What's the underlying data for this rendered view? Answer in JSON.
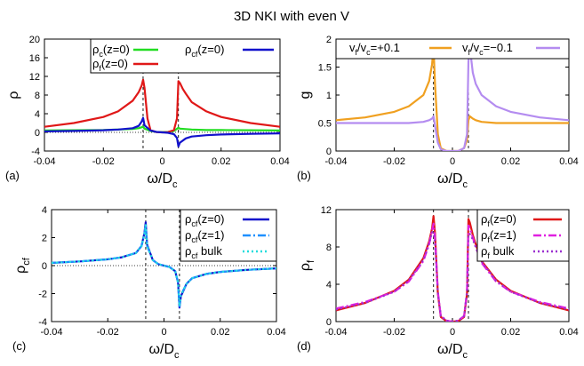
{
  "figure": {
    "title": "3D NKI with even V"
  },
  "chart_data": [
    {
      "panel_label": "(a)",
      "type": "line",
      "xlabel": "ω/D",
      "xlabel_sub": "c",
      "ylabel": "ρ",
      "xlim": [
        -0.04,
        0.04
      ],
      "ylim": [
        -4,
        20
      ],
      "xticks": [
        -0.04,
        -0.02,
        0,
        0.02,
        0.04
      ],
      "xtick_labels": [
        "-0.04",
        "-0.02",
        "0",
        "0.02",
        "0.04"
      ],
      "yticks": [
        -4,
        0,
        4,
        8,
        12,
        16,
        20
      ],
      "ytick_labels": [
        "-4",
        "0",
        "4",
        "8",
        "12",
        "16",
        "20"
      ],
      "vlines": [
        -0.0065,
        0.0055
      ],
      "zero_line": true,
      "legend_position": "top",
      "series": [
        {
          "name": "ρc(z=0)",
          "label_main": "ρ",
          "label_sub": "c",
          "label_rest": "(z=0)",
          "color": "#22dd22",
          "style": "solid",
          "x": [
            -0.04,
            -0.03,
            -0.02,
            -0.015,
            -0.01,
            -0.008,
            -0.0065,
            -0.006,
            -0.004,
            -0.002,
            0,
            0.002,
            0.004,
            0.0055,
            0.006,
            0.008,
            0.01,
            0.015,
            0.02,
            0.03,
            0.04
          ],
          "y": [
            0.4,
            0.45,
            0.5,
            0.6,
            0.75,
            0.9,
            1.2,
            0.8,
            0.3,
            0.1,
            0.05,
            0.1,
            0.3,
            1.0,
            0.8,
            0.7,
            0.6,
            0.5,
            0.5,
            0.45,
            0.4
          ]
        },
        {
          "name": "ρf(z=0)",
          "label_main": "ρ",
          "label_sub": "f",
          "label_rest": "(z=0)",
          "color": "#e01818",
          "style": "solid",
          "x": [
            -0.04,
            -0.03,
            -0.02,
            -0.015,
            -0.01,
            -0.008,
            -0.007,
            -0.0065,
            -0.006,
            -0.005,
            -0.004,
            -0.002,
            0,
            0.002,
            0.004,
            0.005,
            0.0055,
            0.006,
            0.007,
            0.008,
            0.01,
            0.015,
            0.02,
            0.03,
            0.04
          ],
          "y": [
            1.2,
            2.0,
            3.3,
            4.5,
            6.8,
            8.6,
            10.0,
            11.3,
            9.5,
            3.0,
            0.5,
            0.05,
            0.0,
            0.05,
            0.5,
            3.0,
            11.0,
            10.6,
            9.3,
            8.3,
            6.5,
            4.5,
            3.3,
            2.0,
            1.2
          ]
        },
        {
          "name": "ρcf(z=0)",
          "label_main": "ρ",
          "label_sub": "cf",
          "label_rest": "(z=0)",
          "color": "#1212cc",
          "style": "solid",
          "x": [
            -0.04,
            -0.03,
            -0.02,
            -0.015,
            -0.01,
            -0.008,
            -0.007,
            -0.0065,
            -0.006,
            -0.004,
            -0.002,
            0,
            0.002,
            0.004,
            0.005,
            0.0055,
            0.006,
            0.008,
            0.01,
            0.015,
            0.02,
            0.03,
            0.04
          ],
          "y": [
            0.2,
            0.3,
            0.45,
            0.6,
            0.9,
            1.4,
            2.3,
            3.1,
            1.5,
            0.4,
            0.1,
            0,
            -0.1,
            -0.4,
            -1.2,
            -3.0,
            -2.2,
            -1.3,
            -0.9,
            -0.6,
            -0.45,
            -0.3,
            -0.2
          ]
        }
      ]
    },
    {
      "panel_label": "(b)",
      "type": "line",
      "xlabel": "ω/D",
      "xlabel_sub": "c",
      "ylabel": "g",
      "xlim": [
        -0.04,
        0.04
      ],
      "ylim": [
        0,
        2
      ],
      "xticks": [
        -0.04,
        -0.02,
        0,
        0.02,
        0.04
      ],
      "xtick_labels": [
        "-0.04",
        "-0.02",
        "0",
        "0.02",
        "0.04"
      ],
      "yticks": [
        0,
        0.5,
        1,
        1.5,
        2
      ],
      "ytick_labels": [
        "0",
        "0.5",
        "1",
        "1.5",
        "2"
      ],
      "vlines": [
        -0.0065,
        0.0055
      ],
      "zero_line": false,
      "legend_position": "top",
      "series": [
        {
          "name": "vf/vc=+0.1",
          "label_html_parts": [
            "v",
            "f",
            "/v",
            "c",
            "=+0.1"
          ],
          "color": "#f0a020",
          "style": "solid",
          "x": [
            -0.04,
            -0.03,
            -0.02,
            -0.015,
            -0.01,
            -0.008,
            -0.007,
            -0.0065,
            -0.006,
            -0.005,
            -0.004,
            -0.002,
            0,
            0.002,
            0.004,
            0.005,
            0.0055,
            0.006,
            0.007,
            0.008,
            0.01,
            0.015,
            0.02,
            0.03,
            0.04
          ],
          "y": [
            0.55,
            0.6,
            0.7,
            0.8,
            1.0,
            1.25,
            1.55,
            1.88,
            1.2,
            0.3,
            0.05,
            0.0,
            0.0,
            0.0,
            0.05,
            0.2,
            0.55,
            0.62,
            0.58,
            0.55,
            0.52,
            0.5,
            0.5,
            0.5,
            0.5
          ]
        },
        {
          "name": "vf/vc=−0.1",
          "label_html_parts": [
            "v",
            "f",
            "/v",
            "c",
            "=−0.1"
          ],
          "color": "#b48cf0",
          "style": "solid",
          "x": [
            -0.04,
            -0.03,
            -0.02,
            -0.015,
            -0.01,
            -0.008,
            -0.007,
            -0.0065,
            -0.006,
            -0.005,
            -0.004,
            -0.002,
            0,
            0.002,
            0.004,
            0.005,
            0.0055,
            0.006,
            0.007,
            0.008,
            0.01,
            0.015,
            0.02,
            0.03,
            0.04
          ],
          "y": [
            0.5,
            0.5,
            0.5,
            0.5,
            0.52,
            0.55,
            0.58,
            0.62,
            0.45,
            0.15,
            0.03,
            0.0,
            0.0,
            0.0,
            0.05,
            0.3,
            1.6,
            1.85,
            1.4,
            1.2,
            1.0,
            0.8,
            0.7,
            0.6,
            0.55
          ]
        }
      ]
    },
    {
      "panel_label": "(c)",
      "type": "line",
      "xlabel": "ω/D",
      "xlabel_sub": "c",
      "ylabel": "ρ",
      "ylabel_sub": "cf",
      "xlim": [
        -0.04,
        0.04
      ],
      "ylim": [
        -4,
        4
      ],
      "xticks": [
        -0.04,
        -0.02,
        0,
        0.02,
        0.04
      ],
      "xtick_labels": [
        "-0.04",
        "-0.02",
        "0",
        "0.02",
        "0.04"
      ],
      "yticks": [
        -4,
        -2,
        0,
        2,
        4
      ],
      "ytick_labels": [
        "-4",
        "-2",
        "0",
        "2",
        "4"
      ],
      "vlines": [
        -0.0065,
        0.0055
      ],
      "zero_line": true,
      "legend_position": "top-right",
      "series": [
        {
          "name": "ρcf(z=0)",
          "label_main": "ρ",
          "label_sub": "cf",
          "label_rest": "(z=0)",
          "color": "#1212cc",
          "style": "solid",
          "x": [
            -0.04,
            -0.03,
            -0.02,
            -0.015,
            -0.01,
            -0.008,
            -0.007,
            -0.0065,
            -0.006,
            -0.004,
            -0.002,
            0,
            0.002,
            0.004,
            0.005,
            0.0055,
            0.006,
            0.008,
            0.01,
            0.015,
            0.02,
            0.03,
            0.04
          ],
          "y": [
            0.2,
            0.3,
            0.45,
            0.6,
            0.9,
            1.4,
            2.3,
            3.1,
            1.5,
            0.4,
            0.1,
            0,
            -0.1,
            -0.4,
            -1.2,
            -3.0,
            -2.2,
            -1.3,
            -0.9,
            -0.6,
            -0.45,
            -0.3,
            -0.2
          ]
        },
        {
          "name": "ρcf(z=1)",
          "label_main": "ρ",
          "label_sub": "cf",
          "label_rest": "(z=1)",
          "color": "#1e90ff",
          "style": "dashdot",
          "x": [
            -0.04,
            -0.03,
            -0.02,
            -0.015,
            -0.01,
            -0.008,
            -0.007,
            -0.0065,
            -0.006,
            -0.004,
            -0.002,
            0,
            0.002,
            0.004,
            0.005,
            0.0055,
            0.006,
            0.008,
            0.01,
            0.015,
            0.02,
            0.03,
            0.04
          ],
          "y": [
            0.2,
            0.3,
            0.45,
            0.6,
            0.9,
            1.4,
            2.2,
            2.9,
            1.4,
            0.4,
            0.1,
            0,
            -0.1,
            -0.4,
            -1.2,
            -2.9,
            -2.1,
            -1.3,
            -0.9,
            -0.6,
            -0.45,
            -0.3,
            -0.2
          ]
        },
        {
          "name": "ρcf bulk",
          "label_main": "ρ",
          "label_sub": "cf",
          "label_rest": " bulk",
          "color": "#22dddd",
          "style": "dotted",
          "x": [
            -0.04,
            -0.03,
            -0.02,
            -0.015,
            -0.01,
            -0.008,
            -0.007,
            -0.0065,
            -0.006,
            -0.004,
            -0.002,
            0,
            0.002,
            0.004,
            0.005,
            0.0055,
            0.006,
            0.008,
            0.01,
            0.015,
            0.02,
            0.03,
            0.04
          ],
          "y": [
            0.2,
            0.3,
            0.45,
            0.6,
            0.9,
            1.4,
            2.2,
            2.9,
            1.4,
            0.4,
            0.1,
            0,
            -0.1,
            -0.4,
            -1.2,
            -2.9,
            -2.1,
            -1.3,
            -0.9,
            -0.6,
            -0.45,
            -0.3,
            -0.2
          ]
        }
      ]
    },
    {
      "panel_label": "(d)",
      "type": "line",
      "xlabel": "ω/D",
      "xlabel_sub": "c",
      "ylabel": "ρ",
      "ylabel_sub": "f",
      "xlim": [
        -0.04,
        0.04
      ],
      "ylim": [
        0,
        12
      ],
      "xticks": [
        -0.04,
        -0.02,
        0,
        0.02,
        0.04
      ],
      "xtick_labels": [
        "-0.04",
        "-0.02",
        "0",
        "0.02",
        "0.04"
      ],
      "yticks": [
        0,
        4,
        8,
        12
      ],
      "ytick_labels": [
        "0",
        "4",
        "8",
        "12"
      ],
      "vlines": [
        -0.0065,
        0.0055
      ],
      "zero_line": false,
      "legend_position": "top-right",
      "series": [
        {
          "name": "ρf(z=0)",
          "label_main": "ρ",
          "label_sub": "f",
          "label_rest": "(z=0)",
          "color": "#e01818",
          "style": "solid",
          "x": [
            -0.04,
            -0.03,
            -0.02,
            -0.015,
            -0.01,
            -0.008,
            -0.007,
            -0.0065,
            -0.006,
            -0.005,
            -0.004,
            -0.002,
            0,
            0.002,
            0.004,
            0.005,
            0.0055,
            0.006,
            0.007,
            0.008,
            0.01,
            0.015,
            0.02,
            0.03,
            0.04
          ],
          "y": [
            1.2,
            2.0,
            3.3,
            4.5,
            6.8,
            8.6,
            10.0,
            11.3,
            9.5,
            3.0,
            0.5,
            0.05,
            0.0,
            0.05,
            0.5,
            3.0,
            11.0,
            10.6,
            9.3,
            8.3,
            6.5,
            4.5,
            3.3,
            2.0,
            1.2
          ]
        },
        {
          "name": "ρf(z=1)",
          "label_main": "ρ",
          "label_sub": "f",
          "label_rest": "(z=1)",
          "color": "#e020e0",
          "style": "dashdot",
          "x": [
            -0.04,
            -0.03,
            -0.02,
            -0.015,
            -0.01,
            -0.008,
            -0.007,
            -0.0065,
            -0.006,
            -0.005,
            -0.004,
            -0.002,
            0,
            0.002,
            0.004,
            0.005,
            0.0055,
            0.006,
            0.007,
            0.008,
            0.01,
            0.015,
            0.02,
            0.03,
            0.04
          ],
          "y": [
            1.4,
            2.1,
            3.2,
            4.3,
            6.5,
            8.3,
            9.8,
            10.5,
            9.0,
            3.2,
            0.6,
            0.1,
            0.0,
            0.1,
            0.6,
            3.2,
            10.3,
            10.0,
            9.0,
            8.0,
            6.3,
            4.3,
            3.2,
            2.1,
            1.4
          ]
        },
        {
          "name": "ρf bulk",
          "label_main": "ρ",
          "label_sub": "f",
          "label_rest": " bulk",
          "color": "#9b30d0",
          "style": "dotted",
          "x": [
            -0.04,
            -0.03,
            -0.02,
            -0.015,
            -0.01,
            -0.008,
            -0.007,
            -0.0065,
            -0.006,
            -0.005,
            -0.004,
            -0.002,
            0,
            0.002,
            0.004,
            0.005,
            0.0055,
            0.006,
            0.007,
            0.008,
            0.01,
            0.015,
            0.02,
            0.03,
            0.04
          ],
          "y": [
            1.3,
            2.0,
            3.2,
            4.4,
            6.6,
            8.4,
            9.6,
            9.5,
            8.5,
            3.1,
            0.6,
            0.1,
            0.0,
            0.1,
            0.6,
            3.1,
            9.4,
            9.4,
            8.8,
            8.0,
            6.4,
            4.4,
            3.2,
            2.0,
            1.3
          ]
        }
      ]
    }
  ]
}
